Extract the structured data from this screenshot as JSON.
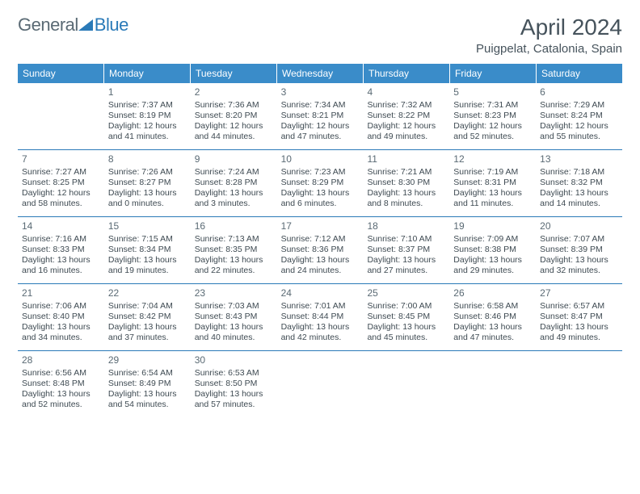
{
  "brand": {
    "part1": "General",
    "part2": "Blue"
  },
  "title": {
    "month": "April 2024",
    "location": "Puigpelat, Catalonia, Spain"
  },
  "colors": {
    "header_bg": "#3a8cc9",
    "divider": "#2a7ab8",
    "text": "#3e4a52",
    "brand_gray": "#5a6a74",
    "brand_blue": "#2a7ab8"
  },
  "dayHeaders": [
    "Sunday",
    "Monday",
    "Tuesday",
    "Wednesday",
    "Thursday",
    "Friday",
    "Saturday"
  ],
  "weeks": [
    [
      null,
      {
        "n": "1",
        "sr": "7:37 AM",
        "ss": "8:19 PM",
        "dl": "12 hours and 41 minutes."
      },
      {
        "n": "2",
        "sr": "7:36 AM",
        "ss": "8:20 PM",
        "dl": "12 hours and 44 minutes."
      },
      {
        "n": "3",
        "sr": "7:34 AM",
        "ss": "8:21 PM",
        "dl": "12 hours and 47 minutes."
      },
      {
        "n": "4",
        "sr": "7:32 AM",
        "ss": "8:22 PM",
        "dl": "12 hours and 49 minutes."
      },
      {
        "n": "5",
        "sr": "7:31 AM",
        "ss": "8:23 PM",
        "dl": "12 hours and 52 minutes."
      },
      {
        "n": "6",
        "sr": "7:29 AM",
        "ss": "8:24 PM",
        "dl": "12 hours and 55 minutes."
      }
    ],
    [
      {
        "n": "7",
        "sr": "7:27 AM",
        "ss": "8:25 PM",
        "dl": "12 hours and 58 minutes."
      },
      {
        "n": "8",
        "sr": "7:26 AM",
        "ss": "8:27 PM",
        "dl": "13 hours and 0 minutes."
      },
      {
        "n": "9",
        "sr": "7:24 AM",
        "ss": "8:28 PM",
        "dl": "13 hours and 3 minutes."
      },
      {
        "n": "10",
        "sr": "7:23 AM",
        "ss": "8:29 PM",
        "dl": "13 hours and 6 minutes."
      },
      {
        "n": "11",
        "sr": "7:21 AM",
        "ss": "8:30 PM",
        "dl": "13 hours and 8 minutes."
      },
      {
        "n": "12",
        "sr": "7:19 AM",
        "ss": "8:31 PM",
        "dl": "13 hours and 11 minutes."
      },
      {
        "n": "13",
        "sr": "7:18 AM",
        "ss": "8:32 PM",
        "dl": "13 hours and 14 minutes."
      }
    ],
    [
      {
        "n": "14",
        "sr": "7:16 AM",
        "ss": "8:33 PM",
        "dl": "13 hours and 16 minutes."
      },
      {
        "n": "15",
        "sr": "7:15 AM",
        "ss": "8:34 PM",
        "dl": "13 hours and 19 minutes."
      },
      {
        "n": "16",
        "sr": "7:13 AM",
        "ss": "8:35 PM",
        "dl": "13 hours and 22 minutes."
      },
      {
        "n": "17",
        "sr": "7:12 AM",
        "ss": "8:36 PM",
        "dl": "13 hours and 24 minutes."
      },
      {
        "n": "18",
        "sr": "7:10 AM",
        "ss": "8:37 PM",
        "dl": "13 hours and 27 minutes."
      },
      {
        "n": "19",
        "sr": "7:09 AM",
        "ss": "8:38 PM",
        "dl": "13 hours and 29 minutes."
      },
      {
        "n": "20",
        "sr": "7:07 AM",
        "ss": "8:39 PM",
        "dl": "13 hours and 32 minutes."
      }
    ],
    [
      {
        "n": "21",
        "sr": "7:06 AM",
        "ss": "8:40 PM",
        "dl": "13 hours and 34 minutes."
      },
      {
        "n": "22",
        "sr": "7:04 AM",
        "ss": "8:42 PM",
        "dl": "13 hours and 37 minutes."
      },
      {
        "n": "23",
        "sr": "7:03 AM",
        "ss": "8:43 PM",
        "dl": "13 hours and 40 minutes."
      },
      {
        "n": "24",
        "sr": "7:01 AM",
        "ss": "8:44 PM",
        "dl": "13 hours and 42 minutes."
      },
      {
        "n": "25",
        "sr": "7:00 AM",
        "ss": "8:45 PM",
        "dl": "13 hours and 45 minutes."
      },
      {
        "n": "26",
        "sr": "6:58 AM",
        "ss": "8:46 PM",
        "dl": "13 hours and 47 minutes."
      },
      {
        "n": "27",
        "sr": "6:57 AM",
        "ss": "8:47 PM",
        "dl": "13 hours and 49 minutes."
      }
    ],
    [
      {
        "n": "28",
        "sr": "6:56 AM",
        "ss": "8:48 PM",
        "dl": "13 hours and 52 minutes."
      },
      {
        "n": "29",
        "sr": "6:54 AM",
        "ss": "8:49 PM",
        "dl": "13 hours and 54 minutes."
      },
      {
        "n": "30",
        "sr": "6:53 AM",
        "ss": "8:50 PM",
        "dl": "13 hours and 57 minutes."
      },
      null,
      null,
      null,
      null
    ]
  ],
  "labels": {
    "sunrise": "Sunrise:",
    "sunset": "Sunset:",
    "daylight": "Daylight:"
  }
}
